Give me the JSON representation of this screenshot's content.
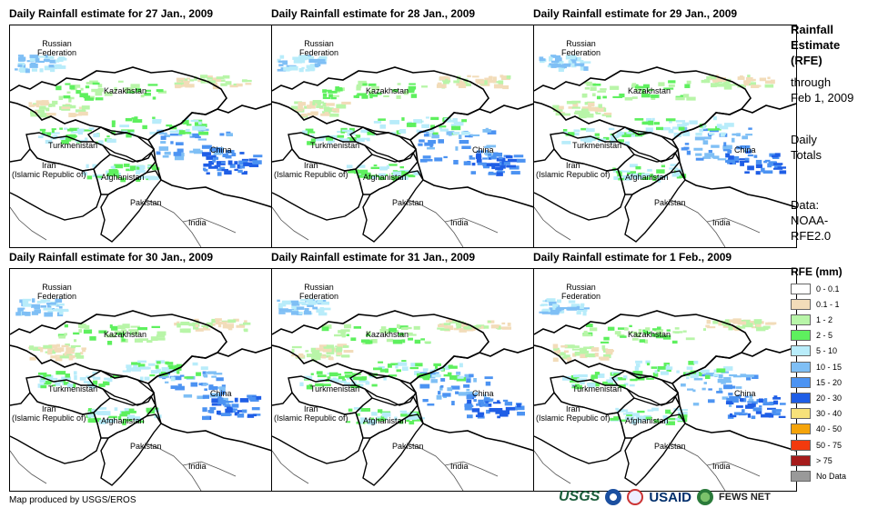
{
  "panels": [
    {
      "title": "Daily Rainfall estimate for 27 Jan., 2009"
    },
    {
      "title": "Daily Rainfall estimate for 28 Jan., 2009"
    },
    {
      "title": "Daily Rainfall estimate for 29 Jan., 2009"
    },
    {
      "title": "Daily Rainfall estimate for 30 Jan., 2009"
    },
    {
      "title": "Daily Rainfall estimate for 31 Jan., 2009"
    },
    {
      "title": "Daily Rainfall estimate for 1 Feb., 2009"
    }
  ],
  "map_labels": {
    "russia_1": "Russian",
    "russia_2": "Federation",
    "kazakhstan": "Kazakhstan",
    "turkmenistan": "Turkmenistan",
    "iran_1": "Iran",
    "iran_2": "(Islamic Republic of)",
    "afghanistan": "Afghanistan",
    "pakistan": "Pakistan",
    "china": "China",
    "india": "India"
  },
  "side": {
    "title_1": "Rainfall",
    "title_2": "Estimate",
    "title_3": "(RFE)",
    "through": "through",
    "date": "Feb 1, 2009",
    "daily": "Daily",
    "totals": "Totals",
    "data": "Data:",
    "noaa": "NOAA-",
    "rfe": "RFE2.0"
  },
  "legend": {
    "title": "RFE (mm)",
    "items": [
      {
        "label": "0 - 0.1",
        "color": "#ffffff"
      },
      {
        "label": "0.1 - 1",
        "color": "#f2dcb9"
      },
      {
        "label": "1 - 2",
        "color": "#b8f5a8"
      },
      {
        "label": "2 - 5",
        "color": "#5ef05e"
      },
      {
        "label": "5 - 10",
        "color": "#b8ecfa"
      },
      {
        "label": "10 - 15",
        "color": "#7fbff5"
      },
      {
        "label": "15 - 20",
        "color": "#4c93f2"
      },
      {
        "label": "20 - 30",
        "color": "#1f5ee6"
      },
      {
        "label": "30 - 40",
        "color": "#f7e27a"
      },
      {
        "label": "40 - 50",
        "color": "#f5a40a"
      },
      {
        "label": "50 - 75",
        "color": "#f23a0e"
      },
      {
        "label": "> 75",
        "color": "#a61c1c"
      },
      {
        "label": "No Data",
        "color": "#999999"
      }
    ]
  },
  "footer": {
    "credit": "Map produced by USGS/EROS",
    "usgs": "USGS",
    "usaid": "USAID",
    "fews": "FEWS NET"
  }
}
